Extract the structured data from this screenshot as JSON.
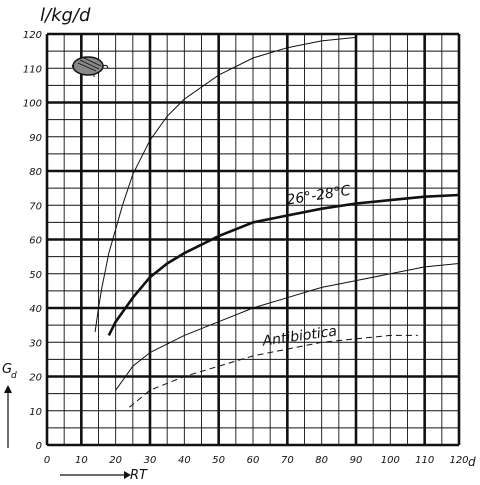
{
  "chart_data": {
    "type": "line",
    "ylabel": "l/kg/d",
    "xlabel": "RT",
    "x_unit": "d",
    "left_axis_symbol": "G",
    "left_axis_subscript": "d",
    "xlim": [
      0,
      120
    ],
    "ylim": [
      0,
      120
    ],
    "x_ticks": [
      0,
      10,
      20,
      30,
      40,
      50,
      60,
      70,
      80,
      90,
      100,
      110,
      120
    ],
    "y_ticks": [
      0,
      10,
      20,
      30,
      40,
      50,
      60,
      70,
      80,
      90,
      100,
      110,
      120
    ],
    "x_tick_labels": [
      "0",
      "10",
      "20",
      "30",
      "40",
      "50",
      "60",
      "70",
      "80",
      "90",
      "100",
      "110",
      "120"
    ],
    "y_tick_labels": [
      "0",
      "10",
      "20",
      "30",
      "40",
      "50",
      "60",
      "70",
      "80",
      "90",
      "100",
      "110",
      "120"
    ],
    "grid": true,
    "series": [
      {
        "label": "",
        "style": "thin",
        "x": [
          14,
          15,
          16,
          17,
          18,
          20,
          22,
          25,
          30,
          35,
          40,
          50,
          60,
          70,
          80,
          90
        ],
        "y": [
          33,
          40,
          46,
          51,
          56,
          63,
          70,
          79,
          89,
          96,
          101,
          108,
          113,
          116,
          118,
          119
        ]
      },
      {
        "label": "26°-28°C",
        "style": "bold",
        "x": [
          18,
          20,
          25,
          30,
          35,
          40,
          50,
          60,
          70,
          80,
          90,
          100,
          110,
          120
        ],
        "y": [
          32,
          36,
          43,
          49,
          53,
          56,
          61,
          65,
          67,
          69,
          70.5,
          71.5,
          72.5,
          73
        ]
      },
      {
        "label": "",
        "style": "thin",
        "x": [
          20,
          25,
          30,
          40,
          50,
          60,
          70,
          80,
          90,
          100,
          110,
          120
        ],
        "y": [
          16,
          23,
          27,
          32,
          36,
          40,
          43,
          46,
          48,
          50,
          52,
          53
        ]
      },
      {
        "label": "Antibiotica",
        "style": "dashed",
        "x": [
          24,
          30,
          40,
          50,
          60,
          70,
          80,
          90,
          100,
          108
        ],
        "y": [
          11,
          16,
          20,
          23,
          26,
          28,
          30,
          31,
          32,
          32
        ]
      }
    ]
  },
  "colors": {
    "ink": "#111111",
    "paper": "#ffffff",
    "icon_fill": "#888888"
  },
  "icons": {
    "corner_icon": "pig-icon",
    "left_arrow": "arrow-up-icon",
    "bottom_arrow": "arrow-right-icon"
  }
}
